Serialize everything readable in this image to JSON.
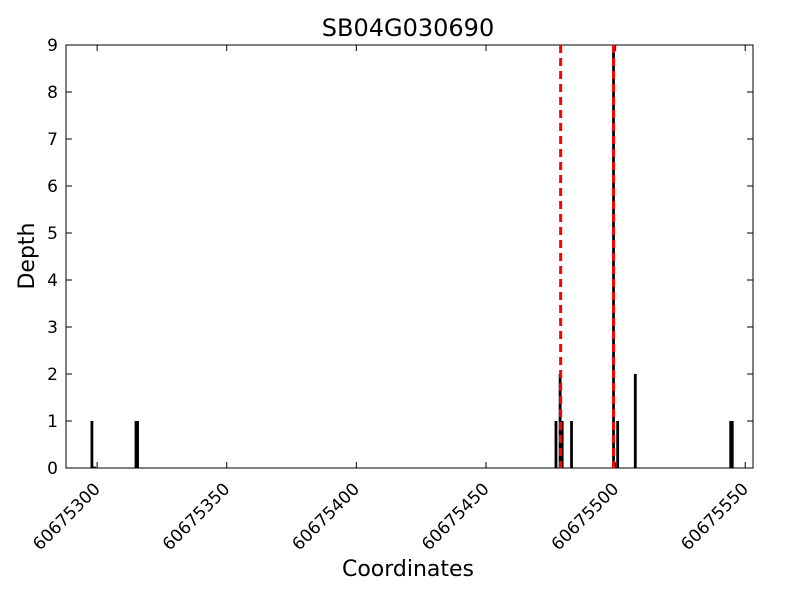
{
  "chart_data": {
    "type": "bar",
    "title": "SB04G030690",
    "xlabel": "Coordinates",
    "ylabel": "Depth",
    "xlim": [
      60675288,
      60675553
    ],
    "ylim": [
      0,
      9
    ],
    "x_ticks": [
      60675300,
      60675350,
      60675400,
      60675450,
      60675500,
      60675550
    ],
    "y_ticks": [
      0,
      1,
      2,
      3,
      4,
      5,
      6,
      7,
      8,
      9
    ],
    "grid": false,
    "bars": [
      {
        "x": 60675298,
        "value": 1
      },
      {
        "x": 60675299,
        "value": 0.03
      },
      {
        "x": 60675315,
        "value": 1
      },
      {
        "x": 60675315.6,
        "value": 1
      },
      {
        "x": 60675477,
        "value": 1
      },
      {
        "x": 60675478.6,
        "value": 2
      },
      {
        "x": 60675479.4,
        "value": 1
      },
      {
        "x": 60675483,
        "value": 1
      },
      {
        "x": 60675499.2,
        "value": 9
      },
      {
        "x": 60675500.8,
        "value": 1
      },
      {
        "x": 60675507.6,
        "value": 2
      },
      {
        "x": 60675544.4,
        "value": 1
      },
      {
        "x": 60675545,
        "value": 1
      }
    ],
    "annotations": [
      {
        "type": "vline",
        "x": 60675478.8,
        "color": "#ff0000",
        "style": "dashed"
      },
      {
        "type": "vline",
        "x": 60675499.2,
        "color": "#ff0000",
        "style": "dashed"
      }
    ],
    "colors": {
      "bar_fill": "#000000",
      "vline": "#ff0000"
    }
  }
}
